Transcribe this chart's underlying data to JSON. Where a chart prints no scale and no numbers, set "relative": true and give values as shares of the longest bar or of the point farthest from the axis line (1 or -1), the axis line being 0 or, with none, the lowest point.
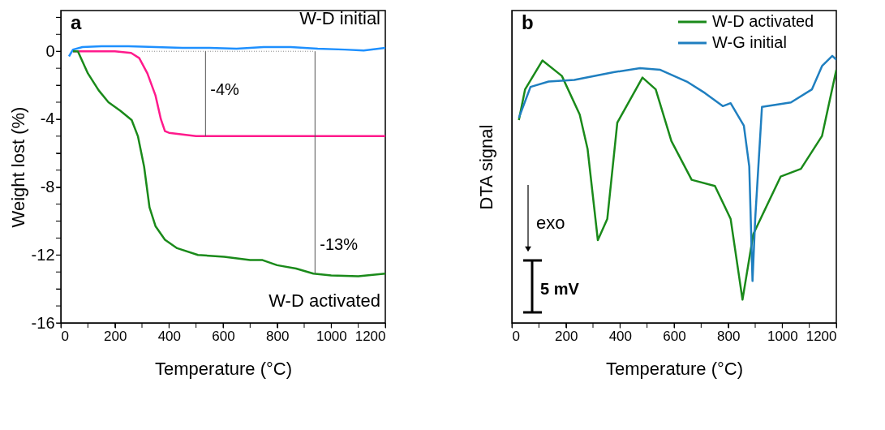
{
  "chart_data": [
    {
      "type": "line",
      "xlabel": "Temperature (°C)",
      "ylabel": "Weight lost (%)",
      "xlim": [
        0,
        1200
      ],
      "ylim": [
        -16,
        2.4
      ],
      "xticks": [
        0,
        {
          "value": 100,
          "label": null
        },
        200,
        {
          "value": 300,
          "label": null
        },
        400,
        {
          "value": 500,
          "label": null
        },
        600,
        {
          "value": 700,
          "label": null
        },
        800,
        {
          "value": 900,
          "label": null
        },
        1000,
        {
          "value": 1100,
          "label": null
        },
        1200
      ],
      "yticks": [
        -16,
        {
          "value": -15,
          "label": null
        },
        {
          "value": -14,
          "label": null
        },
        {
          "value": -13,
          "label": null
        },
        -12,
        {
          "value": -11,
          "label": null
        },
        {
          "value": -10,
          "label": null
        },
        {
          "value": -9,
          "label": null
        },
        -8,
        {
          "value": -7,
          "label": null
        },
        {
          "value": -6,
          "label": null
        },
        {
          "value": -5,
          "label": null
        },
        -4,
        {
          "value": -3,
          "label": null
        },
        {
          "value": -2,
          "label": null
        },
        {
          "value": -1,
          "label": null
        },
        0,
        {
          "value": 1,
          "label": null
        },
        {
          "value": 2,
          "label": null
        }
      ],
      "grid": false,
      "legend": false,
      "series": [
        {
          "name": "W-D initial",
          "color": "#1e90ff",
          "x": [
            30,
            45,
            80,
            150,
            250,
            350,
            450,
            550,
            650,
            750,
            850,
            950,
            1050,
            1120,
            1200
          ],
          "values": [
            -0.3,
            0.1,
            0.25,
            0.3,
            0.3,
            0.25,
            0.2,
            0.2,
            0.15,
            0.25,
            0.25,
            0.15,
            0.1,
            0.05,
            0.2
          ]
        },
        {
          "color": "#ff1a8c",
          "x": [
            45,
            100,
            200,
            260,
            290,
            320,
            350,
            370,
            385,
            400,
            450,
            500,
            600,
            800,
            1000,
            1200
          ],
          "values": [
            0,
            0,
            0,
            -0.1,
            -0.4,
            -1.3,
            -2.6,
            -4.0,
            -4.7,
            -4.8,
            -4.9,
            -5.0,
            -5.0,
            -5.0,
            -5.0,
            -5.0
          ]
        },
        {
          "name": "W-D activated",
          "color": "#1a8a1a",
          "x": [
            45,
            63,
            100,
            140,
            176,
            220,
            262,
            285,
            308,
            328,
            350,
            385,
            430,
            507,
            604,
            700,
            746,
            800,
            870,
            934,
            1000,
            1100,
            1200
          ],
          "values": [
            0,
            0,
            -1.3,
            -2.3,
            -3.0,
            -3.5,
            -4.05,
            -5.0,
            -6.8,
            -9.2,
            -10.3,
            -11.1,
            -11.6,
            -12.0,
            -12.1,
            -12.3,
            -12.3,
            -12.6,
            -12.8,
            -13.1,
            -13.2,
            -13.25,
            -13.1
          ]
        },
        {
          "color": "#888888",
          "line_style": "dotted",
          "x": [
            300,
            940
          ],
          "values": [
            0,
            0
          ]
        },
        {
          "color": "#555555",
          "x": [
            535,
            535
          ],
          "values": [
            0,
            -5.0
          ]
        },
        {
          "color": "#555555",
          "x": [
            940,
            940
          ],
          "values": [
            0,
            -13.1
          ]
        }
      ],
      "annotations": [
        "a",
        {
          "text": "-4%",
          "x": 535,
          "y": -2.3
        },
        {
          "text": "-13%",
          "x": 940,
          "y": -11.4
        }
      ]
    },
    {
      "type": "line",
      "xlabel": "Temperature (°C)",
      "ylabel": "DTA signal",
      "relative": true,
      "xlim": [
        0,
        1200
      ],
      "xticks": [
        0,
        {
          "value": 100,
          "label": null
        },
        200,
        {
          "value": 300,
          "label": null
        },
        400,
        {
          "value": 500,
          "label": null
        },
        600,
        {
          "value": 700,
          "label": null
        },
        800,
        {
          "value": 900,
          "label": null
        },
        1000,
        {
          "value": 1100,
          "label": null
        },
        1200
      ],
      "grid": false,
      "legend": "top right",
      "series": [
        {
          "name": "W-D activated",
          "color": "#1a8a1a",
          "x": [
            26,
            49,
            113,
            185,
            251,
            280,
            318,
            353,
            390,
            483,
            532,
            590,
            665,
            751,
            809,
            853,
            893,
            994,
            1069,
            1147,
            1200
          ],
          "values": [
            0.76,
            0.875,
            0.983,
            0.925,
            0.78,
            0.652,
            0.31,
            0.39,
            0.75,
            0.919,
            0.875,
            0.681,
            0.536,
            0.513,
            0.39,
            0.087,
            0.333,
            0.548,
            0.577,
            0.7,
            0.948
          ]
        },
        {
          "name": "W-G initial",
          "color": "#1f7fc0",
          "x": [
            26,
            69,
            136,
            231,
            376,
            474,
            549,
            647,
            714,
            780,
            809,
            858,
            878,
            890,
            900,
            925,
            1032,
            1110,
            1147,
            1185,
            1200
          ],
          "values": [
            0.768,
            0.884,
            0.904,
            0.91,
            0.939,
            0.954,
            0.948,
            0.904,
            0.861,
            0.812,
            0.823,
            0.739,
            0.586,
            0.157,
            0.39,
            0.809,
            0.826,
            0.875,
            0.962,
            1.0,
            0.986
          ]
        }
      ],
      "annotations": [
        "b",
        "exo",
        "5 mV"
      ]
    }
  ]
}
